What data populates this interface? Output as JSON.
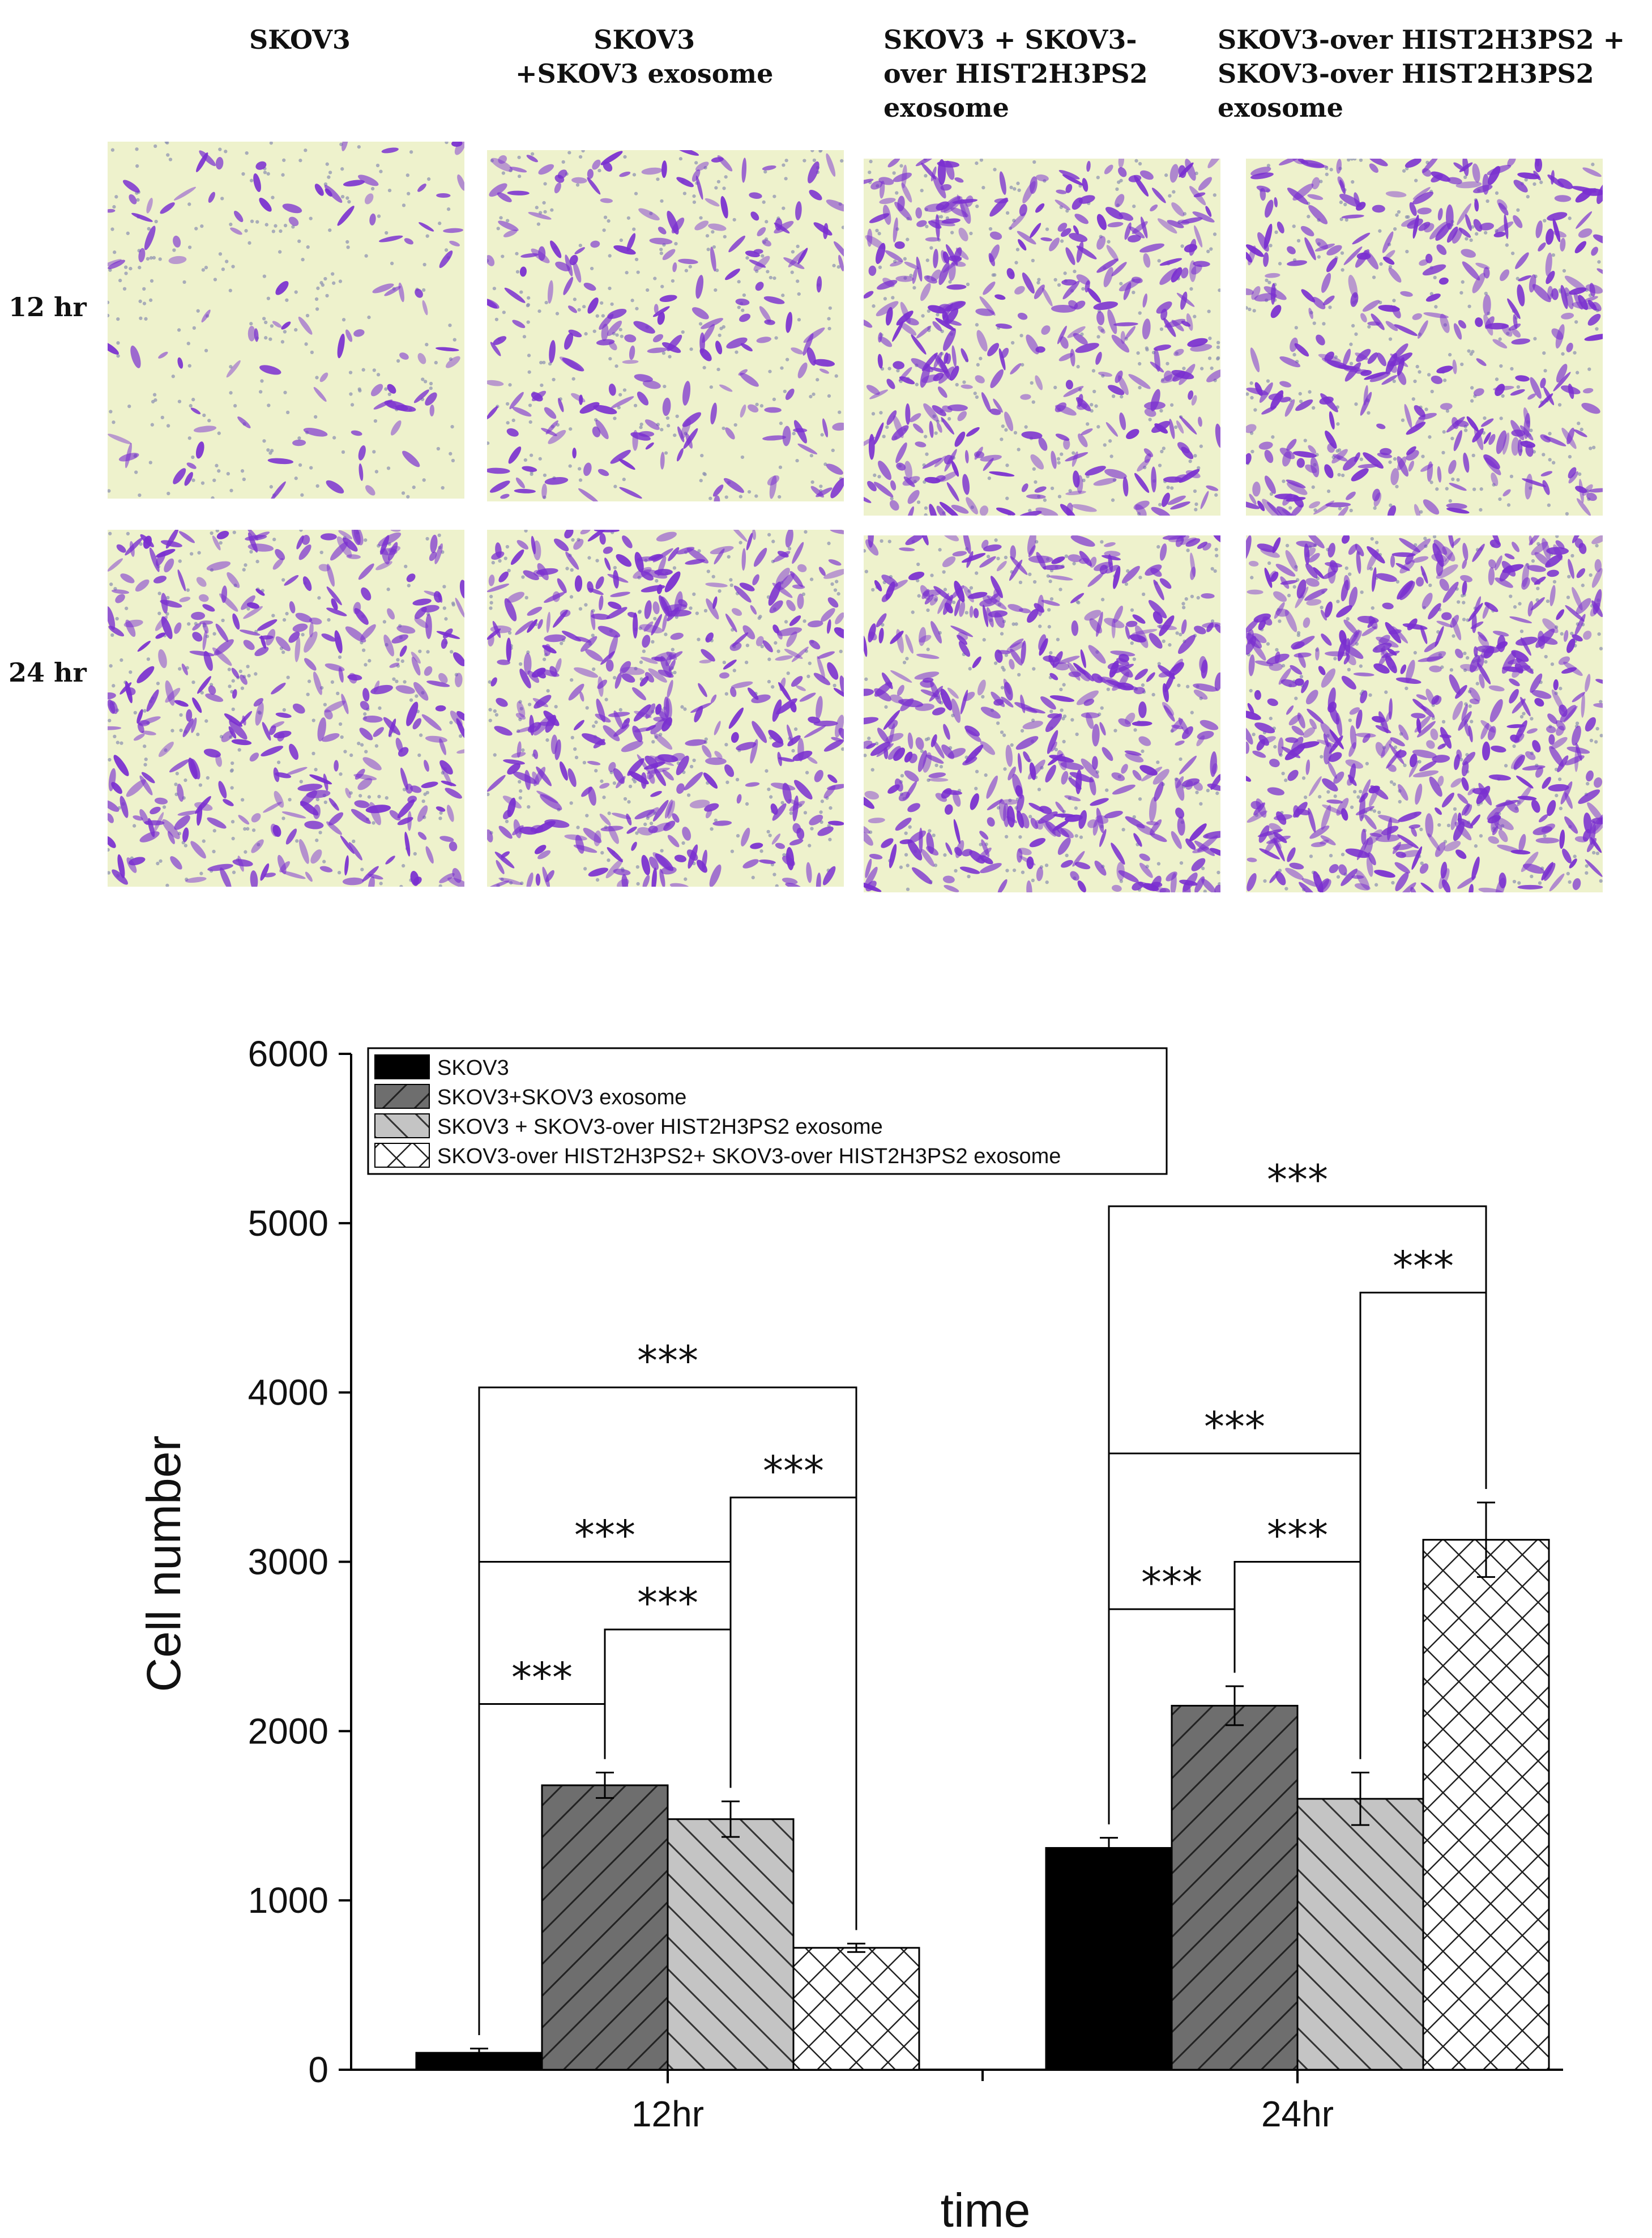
{
  "micrographs": {
    "columns": [
      {
        "label": "SKOV3"
      },
      {
        "label": "SKOV3\n+SKOV3 exosome"
      },
      {
        "label": "SKOV3 + SKOV3-\nover HIST2H3PS2\nexosome"
      },
      {
        "label": "SKOV3-over HIST2H3PS2 +\nSKOV3-over HIST2H3PS2\nexosome"
      }
    ],
    "rows": [
      {
        "label": "12 hr"
      },
      {
        "label": "24 hr"
      }
    ],
    "stain_density": [
      [
        0.12,
        0.35,
        0.7,
        0.65
      ],
      [
        0.6,
        0.75,
        0.8,
        1.0
      ]
    ],
    "colors": {
      "background": "#eef2cc",
      "stain": "#7a2fd0",
      "dots": "#8a8fb0"
    }
  },
  "chart_data": {
    "type": "bar",
    "categories": [
      "12hr",
      "24hr"
    ],
    "series": [
      {
        "name": "SKOV3",
        "values": [
          100,
          1310
        ],
        "errors": [
          25,
          60
        ],
        "pattern": "solid-black"
      },
      {
        "name": "SKOV3+SKOV3 exosome",
        "values": [
          1680,
          2150
        ],
        "errors": [
          75,
          115
        ],
        "pattern": "dark-diag"
      },
      {
        "name": "SKOV3 + SKOV3-over HIST2H3PS2 exosome",
        "values": [
          1480,
          1600
        ],
        "errors": [
          105,
          155
        ],
        "pattern": "light-backdiag"
      },
      {
        "name": "SKOV3-over HIST2H3PS2+ SKOV3-over HIST2H3PS2 exosome",
        "values": [
          720,
          3130
        ],
        "errors": [
          25,
          220
        ],
        "pattern": "crosshatch"
      }
    ],
    "xlabel": "time",
    "ylabel": "Cell number",
    "ylim": [
      0,
      6000
    ],
    "yticks": [
      0,
      1000,
      2000,
      3000,
      4000,
      5000,
      6000
    ],
    "legend_position": "top-left",
    "significance": [
      {
        "group": 0,
        "from_series": 0,
        "to_series": 1,
        "level": 2160,
        "label": "***"
      },
      {
        "group": 0,
        "from_series": 1,
        "to_series": 2,
        "level": 2600,
        "label": "***"
      },
      {
        "group": 0,
        "from_series": 0,
        "to_series": 2,
        "level": 3000,
        "label": "***"
      },
      {
        "group": 0,
        "from_series": 2,
        "to_series": 3,
        "level": 3380,
        "label": "***"
      },
      {
        "group": 0,
        "from_series": 0,
        "to_series": 3,
        "level": 4030,
        "label": "***"
      },
      {
        "group": 1,
        "from_series": 0,
        "to_series": 1,
        "level": 2720,
        "label": "***"
      },
      {
        "group": 1,
        "from_series": 1,
        "to_series": 2,
        "level": 3000,
        "label": "***"
      },
      {
        "group": 1,
        "from_series": 0,
        "to_series": 2,
        "level": 3640,
        "label": "***"
      },
      {
        "group": 1,
        "from_series": 2,
        "to_series": 3,
        "level": 4590,
        "label": "***"
      },
      {
        "group": 1,
        "from_series": 0,
        "to_series": 3,
        "level": 5100,
        "label": "***"
      }
    ],
    "colors": {
      "black": "#000000",
      "dark": "#6e6e6e",
      "light": "#c4c4c4",
      "white": "#ffffff"
    }
  }
}
